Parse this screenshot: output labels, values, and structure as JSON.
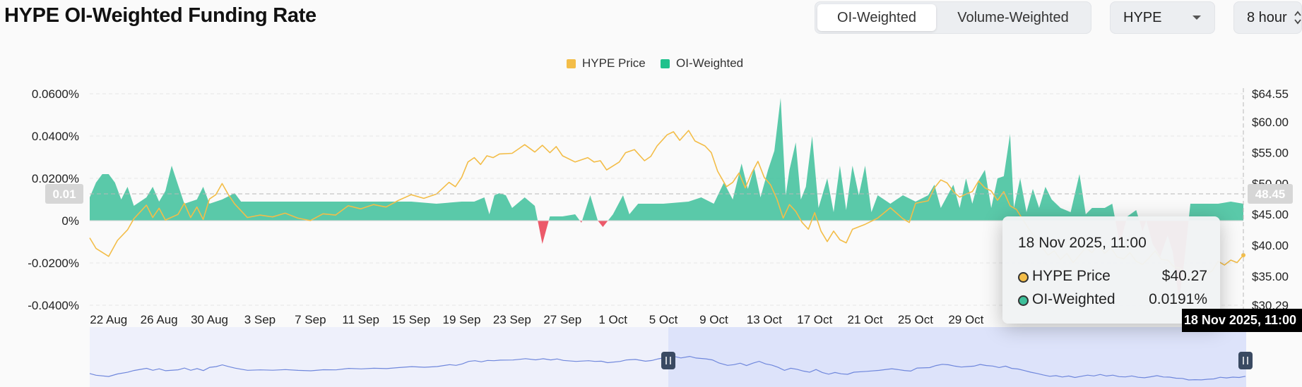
{
  "title": "HYPE OI-Weighted Funding Rate",
  "tabs": [
    {
      "label": "OI-Weighted",
      "active": true
    },
    {
      "label": "Volume-Weighted",
      "active": false
    }
  ],
  "asset_select": {
    "value": "HYPE"
  },
  "interval_select": {
    "value": "8 hour"
  },
  "colors": {
    "price": "#f3bd48",
    "oi": "#3dbf9a",
    "negative": "#ec5a6a",
    "brush": "#dde3fa",
    "brush_line": "#6f87dc"
  },
  "tooltip": {
    "date": "18 Nov 2025, 11:00",
    "rows": [
      {
        "name": "HYPE Price",
        "value": "$40.27",
        "dot": "#f3bd48"
      },
      {
        "name": "OI-Weighted",
        "value": "0.0191%",
        "dot": "#3dbf9a"
      }
    ]
  },
  "pointer": {
    "y_left": "0.01",
    "y_right": "48.45",
    "x_label": "18 Nov 2025, 11:00"
  },
  "chart_data": {
    "type": "area+line",
    "title": "HYPE OI-Weighted Funding Rate",
    "legend": [
      "HYPE Price",
      "OI-Weighted"
    ],
    "legend_position": "top-center",
    "grid": true,
    "x_ticks": [
      "22 Aug",
      "26 Aug",
      "30 Aug",
      "3 Sep",
      "7 Sep",
      "11 Sep",
      "15 Sep",
      "19 Sep",
      "23 Sep",
      "27 Sep",
      "1 Oct",
      "5 Oct",
      "9 Oct",
      "13 Oct",
      "17 Oct",
      "21 Oct",
      "25 Oct",
      "29 Oct"
    ],
    "y_left": {
      "ticks": [
        0.06,
        0.04,
        0.02,
        0,
        -0.02,
        -0.04
      ],
      "tick_labels": [
        "0.0600%",
        "0.0400%",
        "0.0200%",
        "0%",
        "-0.0200%",
        "-0.0400%"
      ],
      "range": [
        -0.04,
        0.06
      ]
    },
    "y_right": {
      "ticks": [
        64.55,
        60,
        55,
        50,
        45,
        40,
        35,
        30.29
      ],
      "tick_labels": [
        "$64.55",
        "$60.00",
        "$55.00",
        "$50.00",
        "$45.00",
        "$40.00",
        "$35.00",
        "$30.29"
      ],
      "range": [
        30.29,
        64.55
      ]
    },
    "x_range": [
      -1.5,
      90
    ],
    "series": [
      {
        "name": "OI-Weighted",
        "axis": "left",
        "points": [
          [
            -1.5,
            0.011
          ],
          [
            -1,
            0.018
          ],
          [
            -0.5,
            0.022
          ],
          [
            0,
            0.022
          ],
          [
            0.5,
            0.018
          ],
          [
            1,
            0.01
          ],
          [
            1.5,
            0.016
          ],
          [
            2,
            0.007
          ],
          [
            3,
            0.011
          ],
          [
            3.5,
            0.016
          ],
          [
            4,
            0.009
          ],
          [
            4.5,
            0.014
          ],
          [
            5,
            0.026
          ],
          [
            5.5,
            0.017
          ],
          [
            6,
            0.008
          ],
          [
            7,
            0.01
          ],
          [
            7.5,
            0.016
          ],
          [
            8,
            0.008
          ],
          [
            9,
            0.01
          ],
          [
            10,
            0.013
          ],
          [
            10.5,
            0.009
          ],
          [
            12,
            0.009
          ],
          [
            14,
            0.009
          ],
          [
            16,
            0.009
          ],
          [
            18,
            0.009
          ],
          [
            20,
            0.009
          ],
          [
            22,
            0.009
          ],
          [
            24,
            0.009
          ],
          [
            26,
            0.008
          ],
          [
            28,
            0.009
          ],
          [
            29,
            0.009
          ],
          [
            29.8,
            0.011
          ],
          [
            30.2,
            0.003
          ],
          [
            30.6,
            0.012
          ],
          [
            31,
            0.013
          ],
          [
            31.5,
            0.012
          ],
          [
            32,
            0.006
          ],
          [
            33,
            0.011
          ],
          [
            33.8,
            0.007
          ],
          [
            34.4,
            -0.011
          ],
          [
            35,
            0.002
          ],
          [
            36,
            0.002
          ],
          [
            37,
            0.003
          ],
          [
            37.5,
            -0.001
          ],
          [
            38.2,
            0.012
          ],
          [
            38.8,
            0
          ],
          [
            39.2,
            -0.003
          ],
          [
            40,
            0.003
          ],
          [
            40.8,
            0.012
          ],
          [
            41.3,
            0.003
          ],
          [
            42,
            0.008
          ],
          [
            44,
            0.008
          ],
          [
            46,
            0.009
          ],
          [
            47,
            0.011
          ],
          [
            48,
            0.008
          ],
          [
            48.8,
            0.018
          ],
          [
            49.5,
            0.01
          ],
          [
            50.2,
            0.027
          ],
          [
            50.7,
            0.015
          ],
          [
            51.2,
            0.025
          ],
          [
            51.7,
            0.011
          ],
          [
            52.3,
            0.024
          ],
          [
            52.8,
            0.033
          ],
          [
            53.3,
            0.058
          ],
          [
            53.7,
            0.012
          ],
          [
            54,
            0.024
          ],
          [
            54.5,
            0.037
          ],
          [
            54.9,
            0.01
          ],
          [
            55.3,
            0.016
          ],
          [
            55.8,
            0.04
          ],
          [
            56.3,
            0.006
          ],
          [
            57,
            0.02
          ],
          [
            57.5,
            0.004
          ],
          [
            58,
            0.026
          ],
          [
            58.5,
            0.005
          ],
          [
            59,
            0.026
          ],
          [
            59.5,
            0.012
          ],
          [
            60,
            0.026
          ],
          [
            60.5,
            0.004
          ],
          [
            61,
            0.012
          ],
          [
            62,
            0.008
          ],
          [
            63,
            0.012
          ],
          [
            64,
            0.009
          ],
          [
            65,
            0.012
          ],
          [
            65.5,
            0.017
          ],
          [
            66,
            0.006
          ],
          [
            67,
            0.017
          ],
          [
            67.5,
            0.006
          ],
          [
            68,
            0.02
          ],
          [
            68.5,
            0.008
          ],
          [
            69,
            0.019
          ],
          [
            69.5,
            0.024
          ],
          [
            70,
            0.006
          ],
          [
            70.5,
            0.02
          ],
          [
            71,
            0.021
          ],
          [
            71.5,
            0.041
          ],
          [
            71.8,
            0.006
          ],
          [
            72.3,
            0.02
          ],
          [
            72.8,
            0.004
          ],
          [
            73.3,
            0.015
          ],
          [
            73.8,
            0.006
          ],
          [
            74.3,
            0.016
          ],
          [
            74.8,
            0.01
          ],
          [
            75.5,
            0.006
          ],
          [
            76.3,
            0.004
          ],
          [
            77,
            0.022
          ],
          [
            77.5,
            0.003
          ],
          [
            78,
            0.006
          ],
          [
            79,
            0.006
          ],
          [
            79.6,
            0.008
          ],
          [
            80.2,
            -0.011
          ],
          [
            80.8,
            0.002
          ],
          [
            81.5,
            0.005
          ],
          [
            82,
            -0.005
          ],
          [
            82.3,
            0
          ],
          [
            82.8,
            -0.011
          ],
          [
            83.4,
            -0.017
          ],
          [
            84,
            -0.007
          ],
          [
            84.4,
            -0.015
          ],
          [
            84.9,
            -0.038
          ],
          [
            85.3,
            -0.02
          ],
          [
            85.8,
            0.008
          ],
          [
            86.5,
            0.008
          ],
          [
            88,
            0.008
          ],
          [
            89,
            0.009
          ],
          [
            90,
            0.008
          ]
        ]
      },
      {
        "name": "HYPE Price",
        "axis": "right",
        "points": [
          [
            -1.5,
            41.2
          ],
          [
            -1,
            39.5
          ],
          [
            0,
            38.2
          ],
          [
            0.7,
            40.8
          ],
          [
            1.5,
            42.5
          ],
          [
            2,
            44.3
          ],
          [
            3,
            46.5
          ],
          [
            3.5,
            44.5
          ],
          [
            4,
            46
          ],
          [
            4.5,
            44.1
          ],
          [
            5.5,
            45
          ],
          [
            6,
            46.8
          ],
          [
            6.5,
            44.5
          ],
          [
            7,
            46.2
          ],
          [
            7.5,
            44.2
          ],
          [
            8,
            47.5
          ],
          [
            8.5,
            48.2
          ],
          [
            9,
            50
          ],
          [
            9.5,
            48.2
          ],
          [
            10,
            46.7
          ],
          [
            10.5,
            45.6
          ],
          [
            11,
            44.5
          ],
          [
            12,
            44.9
          ],
          [
            13,
            44.6
          ],
          [
            14,
            45.2
          ],
          [
            15,
            44.4
          ],
          [
            16,
            44
          ],
          [
            17,
            45.1
          ],
          [
            18,
            44.9
          ],
          [
            19,
            46.4
          ],
          [
            20,
            45.9
          ],
          [
            21,
            46.6
          ],
          [
            22,
            46.2
          ],
          [
            23,
            47.3
          ],
          [
            24,
            48.2
          ],
          [
            25,
            47.6
          ],
          [
            26,
            48.3
          ],
          [
            27,
            50.2
          ],
          [
            27.5,
            49.5
          ],
          [
            28,
            51
          ],
          [
            28.5,
            53.5
          ],
          [
            29,
            54.2
          ],
          [
            29.5,
            53.1
          ],
          [
            30,
            54.5
          ],
          [
            30.5,
            54.2
          ],
          [
            31,
            54.8
          ],
          [
            32,
            54.9
          ],
          [
            32.5,
            55.6
          ],
          [
            33,
            56.3
          ],
          [
            33.8,
            55.1
          ],
          [
            34.4,
            56.2
          ],
          [
            35,
            55
          ],
          [
            35.5,
            56
          ],
          [
            36,
            54.5
          ],
          [
            37,
            53.5
          ],
          [
            38,
            54.2
          ],
          [
            38.5,
            53.5
          ],
          [
            39,
            53.7
          ],
          [
            39.5,
            52.2
          ],
          [
            40.5,
            53.5
          ],
          [
            41,
            55
          ],
          [
            41.7,
            55.5
          ],
          [
            42.5,
            53.7
          ],
          [
            43,
            54.4
          ],
          [
            43.5,
            56.1
          ],
          [
            44.3,
            57.9
          ],
          [
            44.8,
            58.4
          ],
          [
            45.3,
            57
          ],
          [
            46,
            58.6
          ],
          [
            46.5,
            56.9
          ],
          [
            47.3,
            56.1
          ],
          [
            47.8,
            55
          ],
          [
            48.3,
            52
          ],
          [
            49,
            49.5
          ],
          [
            49.5,
            50.2
          ],
          [
            50,
            51.7
          ],
          [
            50.5,
            49.3
          ],
          [
            51,
            51.7
          ],
          [
            51.5,
            53.6
          ],
          [
            52,
            51
          ],
          [
            52.5,
            49.8
          ],
          [
            53,
            47.5
          ],
          [
            53.5,
            44.4
          ],
          [
            54,
            46.6
          ],
          [
            54.5,
            45.5
          ],
          [
            55,
            43.7
          ],
          [
            55.5,
            42.6
          ],
          [
            56,
            45.3
          ],
          [
            56.5,
            42.3
          ],
          [
            57,
            40.6
          ],
          [
            57.5,
            42.3
          ],
          [
            58,
            40.9
          ],
          [
            58.5,
            40.4
          ],
          [
            59,
            42.6
          ],
          [
            60,
            43.4
          ],
          [
            61,
            44.4
          ],
          [
            62,
            46.1
          ],
          [
            62.5,
            45.2
          ],
          [
            63,
            44.3
          ],
          [
            63.5,
            43.7
          ],
          [
            64,
            46.8
          ],
          [
            65,
            47.2
          ],
          [
            65.5,
            49.3
          ],
          [
            66,
            50.6
          ],
          [
            66.5,
            50.1
          ],
          [
            67,
            48.7
          ],
          [
            67.5,
            47.8
          ],
          [
            68,
            48.3
          ],
          [
            68.5,
            48.7
          ],
          [
            69,
            50.4
          ],
          [
            69.5,
            49.3
          ],
          [
            70,
            48.8
          ],
          [
            70.5,
            47.3
          ],
          [
            71,
            48.7
          ],
          [
            71.5,
            46.4
          ],
          [
            72,
            45.8
          ],
          [
            72.5,
            44.2
          ],
          [
            73,
            42.6
          ],
          [
            73.5,
            41.3
          ],
          [
            74,
            39.8
          ],
          [
            74.5,
            38.4
          ],
          [
            75,
            39.1
          ],
          [
            75.5,
            37.7
          ],
          [
            76,
            38.7
          ],
          [
            76.5,
            37.2
          ],
          [
            77,
            38.4
          ],
          [
            77.5,
            39.6
          ],
          [
            78,
            38.8
          ],
          [
            78.5,
            40.3
          ],
          [
            79,
            38.7
          ],
          [
            79.5,
            39.6
          ],
          [
            80,
            38.1
          ],
          [
            80.5,
            37.8
          ],
          [
            81,
            38.8
          ],
          [
            81.5,
            37.4
          ],
          [
            82,
            36.9
          ],
          [
            82.5,
            37.9
          ],
          [
            83,
            39.1
          ],
          [
            83.5,
            37.7
          ],
          [
            84,
            37.6
          ],
          [
            84.5,
            36.5
          ],
          [
            85,
            36.3
          ],
          [
            85.5,
            34.7
          ],
          [
            86,
            35
          ],
          [
            86.5,
            34.8
          ],
          [
            87,
            35.4
          ],
          [
            87.5,
            35.8
          ],
          [
            88,
            37.4
          ],
          [
            88.5,
            36.8
          ],
          [
            89,
            37.6
          ],
          [
            89.5,
            37.2
          ],
          [
            90,
            38.4
          ]
        ]
      }
    ]
  }
}
